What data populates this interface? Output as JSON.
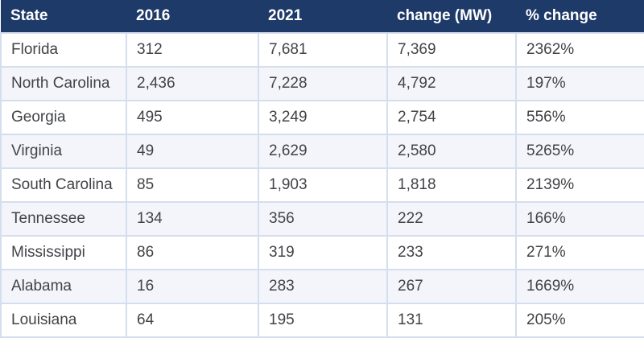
{
  "colors": {
    "header_bg": "#1e3a68",
    "header_text": "#ffffff",
    "border": "#d5deef",
    "row_bg": "#ffffff",
    "row_alt_bg": "#f3f5fa",
    "body_text": "#414347"
  },
  "chart_data": {
    "type": "table",
    "columns": [
      "State",
      "2016",
      "2021",
      "change (MW)",
      "% change"
    ],
    "rows": [
      [
        "Florida",
        "312",
        "7,681",
        "7,369",
        "2362%"
      ],
      [
        "North Carolina",
        "2,436",
        "7,228",
        "4,792",
        "197%"
      ],
      [
        "Georgia",
        "495",
        "3,249",
        "2,754",
        "556%"
      ],
      [
        "Virginia",
        "49",
        "2,629",
        "2,580",
        "5265%"
      ],
      [
        "South Carolina",
        "85",
        "1,903",
        "1,818",
        "2139%"
      ],
      [
        "Tennessee",
        "134",
        "356",
        "222",
        "166%"
      ],
      [
        "Mississippi",
        "86",
        "319",
        "233",
        "271%"
      ],
      [
        "Alabama",
        "16",
        "283",
        "267",
        "1669%"
      ],
      [
        "Louisiana",
        "64",
        "195",
        "131",
        "205%"
      ]
    ]
  }
}
